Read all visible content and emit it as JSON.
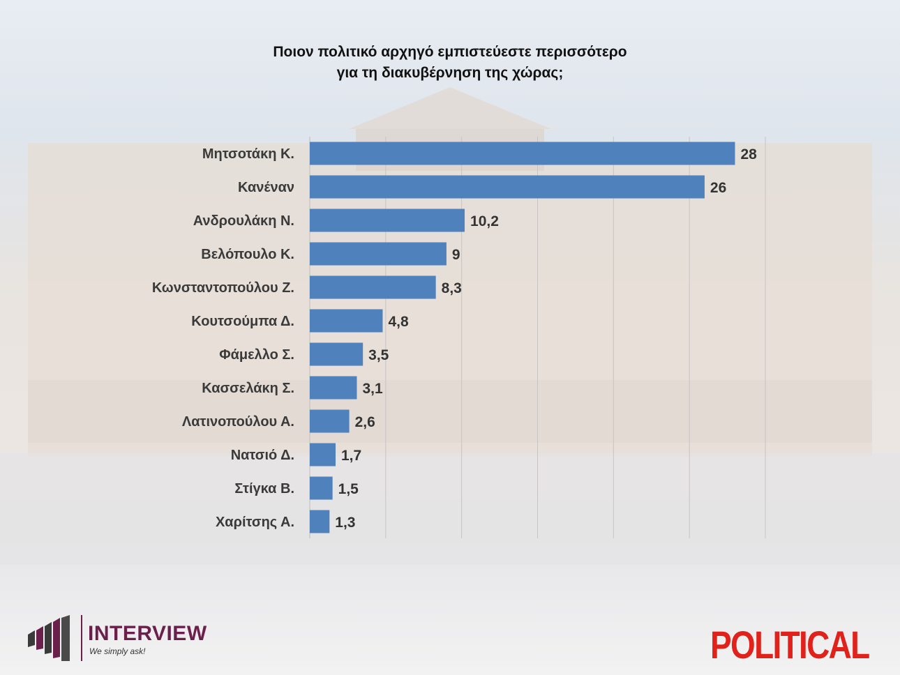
{
  "title_lines": [
    "Ποιον πολιτικό αρχηγό εμπιστεύεστε περισσότερο",
    "για τη διακυβέρνηση της χώρας;"
  ],
  "logos": {
    "left_name": "INTERVIEW",
    "left_tagline": "We simply ask!",
    "right_name": "POLITICAL"
  },
  "colors": {
    "bar": "#4f81bd",
    "logo_interview": "#6b1f4b",
    "logo_political": "#e0221b"
  },
  "chart_data": {
    "type": "bar",
    "orientation": "horizontal",
    "title": "Ποιον πολιτικό αρχηγό εμπιστεύεστε περισσότερο για τη διακυβέρνηση της χώρας;",
    "categories": [
      "Μητσοτάκη Κ.",
      "Κανέναν",
      "Ανδρουλάκη Ν.",
      "Βελόπουλο Κ.",
      "Κωνσταντοπούλου Ζ.",
      "Κουτσούμπα Δ.",
      "Φάμελλο Σ.",
      "Κασσελάκη Σ.",
      "Λατινοπούλου Α.",
      "Νατσιό Δ.",
      "Στίγκα Β.",
      "Χαρίτσης Α."
    ],
    "value_labels": [
      "28",
      "26",
      "10,2",
      "9",
      "8,3",
      "4,8",
      "3,5",
      "3,1",
      "2,6",
      "1,7",
      "1,5",
      "1,3"
    ],
    "values": [
      28,
      26,
      10.2,
      9,
      8.3,
      4.8,
      3.5,
      3.1,
      2.6,
      1.7,
      1.5,
      1.3
    ],
    "xlim": [
      0,
      30
    ],
    "grid": true
  }
}
